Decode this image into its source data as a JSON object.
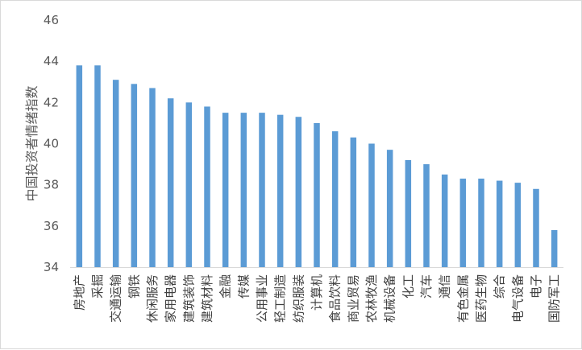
{
  "chart_data": {
    "type": "bar",
    "title": "",
    "xlabel": "",
    "ylabel": "中国投资者情绪指数",
    "ylim": [
      34,
      46
    ],
    "yticks": [
      34,
      36,
      38,
      40,
      42,
      44,
      46
    ],
    "grid": false,
    "legend": "none",
    "bar_color": "#5b9bd5",
    "categories": [
      "房地产",
      "采掘",
      "交通运输",
      "钢铁",
      "休闲服务",
      "家用电器",
      "建筑装饰",
      "建筑材料",
      "金融",
      "传媒",
      "公用事业",
      "轻工制造",
      "纺织服装",
      "计算机",
      "食品饮料",
      "商业贸易",
      "农林牧渔",
      "机械设备",
      "化工",
      "汽车",
      "通信",
      "有色金属",
      "医药生物",
      "综合",
      "电气设备",
      "电子",
      "国防军工"
    ],
    "values": [
      43.8,
      43.8,
      43.1,
      42.9,
      42.7,
      42.2,
      42.0,
      41.8,
      41.5,
      41.5,
      41.5,
      41.4,
      41.3,
      41.0,
      40.6,
      40.3,
      40.0,
      39.7,
      39.2,
      39.0,
      38.5,
      38.3,
      38.3,
      38.2,
      38.1,
      37.8,
      35.8
    ]
  }
}
